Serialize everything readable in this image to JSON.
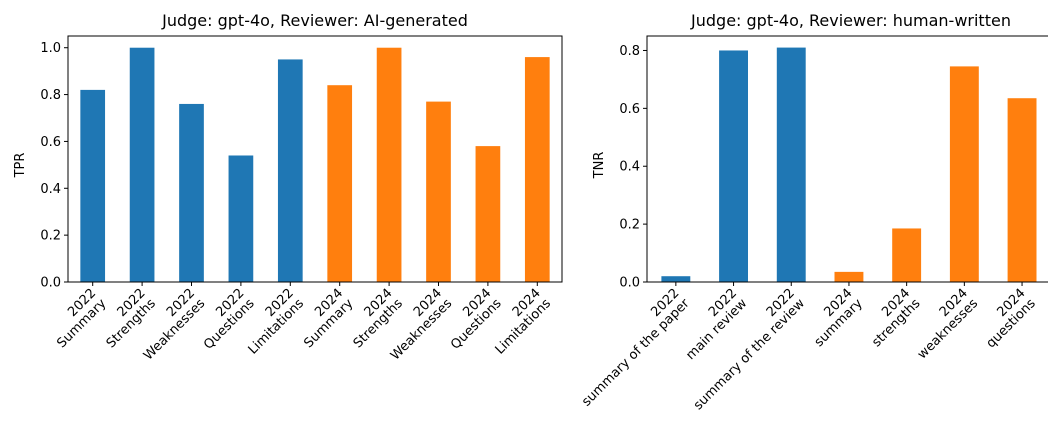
{
  "chart_data": [
    {
      "type": "bar",
      "title": "Judge: gpt-4o, Reviewer: AI-generated",
      "xlabel": "",
      "ylabel": "TPR",
      "ylim": [
        0,
        1.05
      ],
      "yticks": [
        "0.0",
        "0.2",
        "0.4",
        "0.6",
        "0.8",
        "1.0"
      ],
      "grid": false,
      "categories": [
        [
          "2022",
          "Summary"
        ],
        [
          "2022",
          "Strengths"
        ],
        [
          "2022",
          "Weaknesses"
        ],
        [
          "2022",
          "Questions"
        ],
        [
          "2022",
          "Limitations"
        ],
        [
          "2024",
          "Summary"
        ],
        [
          "2024",
          "Strengths"
        ],
        [
          "2024",
          "Weaknesses"
        ],
        [
          "2024",
          "Questions"
        ],
        [
          "2024",
          "Limitations"
        ]
      ],
      "values": [
        0.82,
        1.0,
        0.76,
        0.54,
        0.95,
        0.84,
        1.0,
        0.77,
        0.58,
        0.96
      ],
      "bar_colors": [
        "#1f77b4",
        "#1f77b4",
        "#1f77b4",
        "#1f77b4",
        "#1f77b4",
        "#ff7f0e",
        "#ff7f0e",
        "#ff7f0e",
        "#ff7f0e",
        "#ff7f0e"
      ]
    },
    {
      "type": "bar",
      "title": "Judge: gpt-4o, Reviewer: human-written",
      "xlabel": "",
      "ylabel": "TNR",
      "ylim": [
        0,
        0.85
      ],
      "yticks": [
        "0.0",
        "0.2",
        "0.4",
        "0.6",
        "0.8"
      ],
      "grid": false,
      "categories": [
        [
          "2022",
          "summary of the paper"
        ],
        [
          "2022",
          "main review"
        ],
        [
          "2022",
          "summary of the review"
        ],
        [
          "2024",
          "summary"
        ],
        [
          "2024",
          "strengths"
        ],
        [
          "2024",
          "weaknesses"
        ],
        [
          "2024",
          "questions"
        ]
      ],
      "values": [
        0.02,
        0.8,
        0.81,
        0.035,
        0.185,
        0.745,
        0.635
      ],
      "bar_colors": [
        "#1f77b4",
        "#1f77b4",
        "#1f77b4",
        "#ff7f0e",
        "#ff7f0e",
        "#ff7f0e",
        "#ff7f0e"
      ]
    }
  ]
}
